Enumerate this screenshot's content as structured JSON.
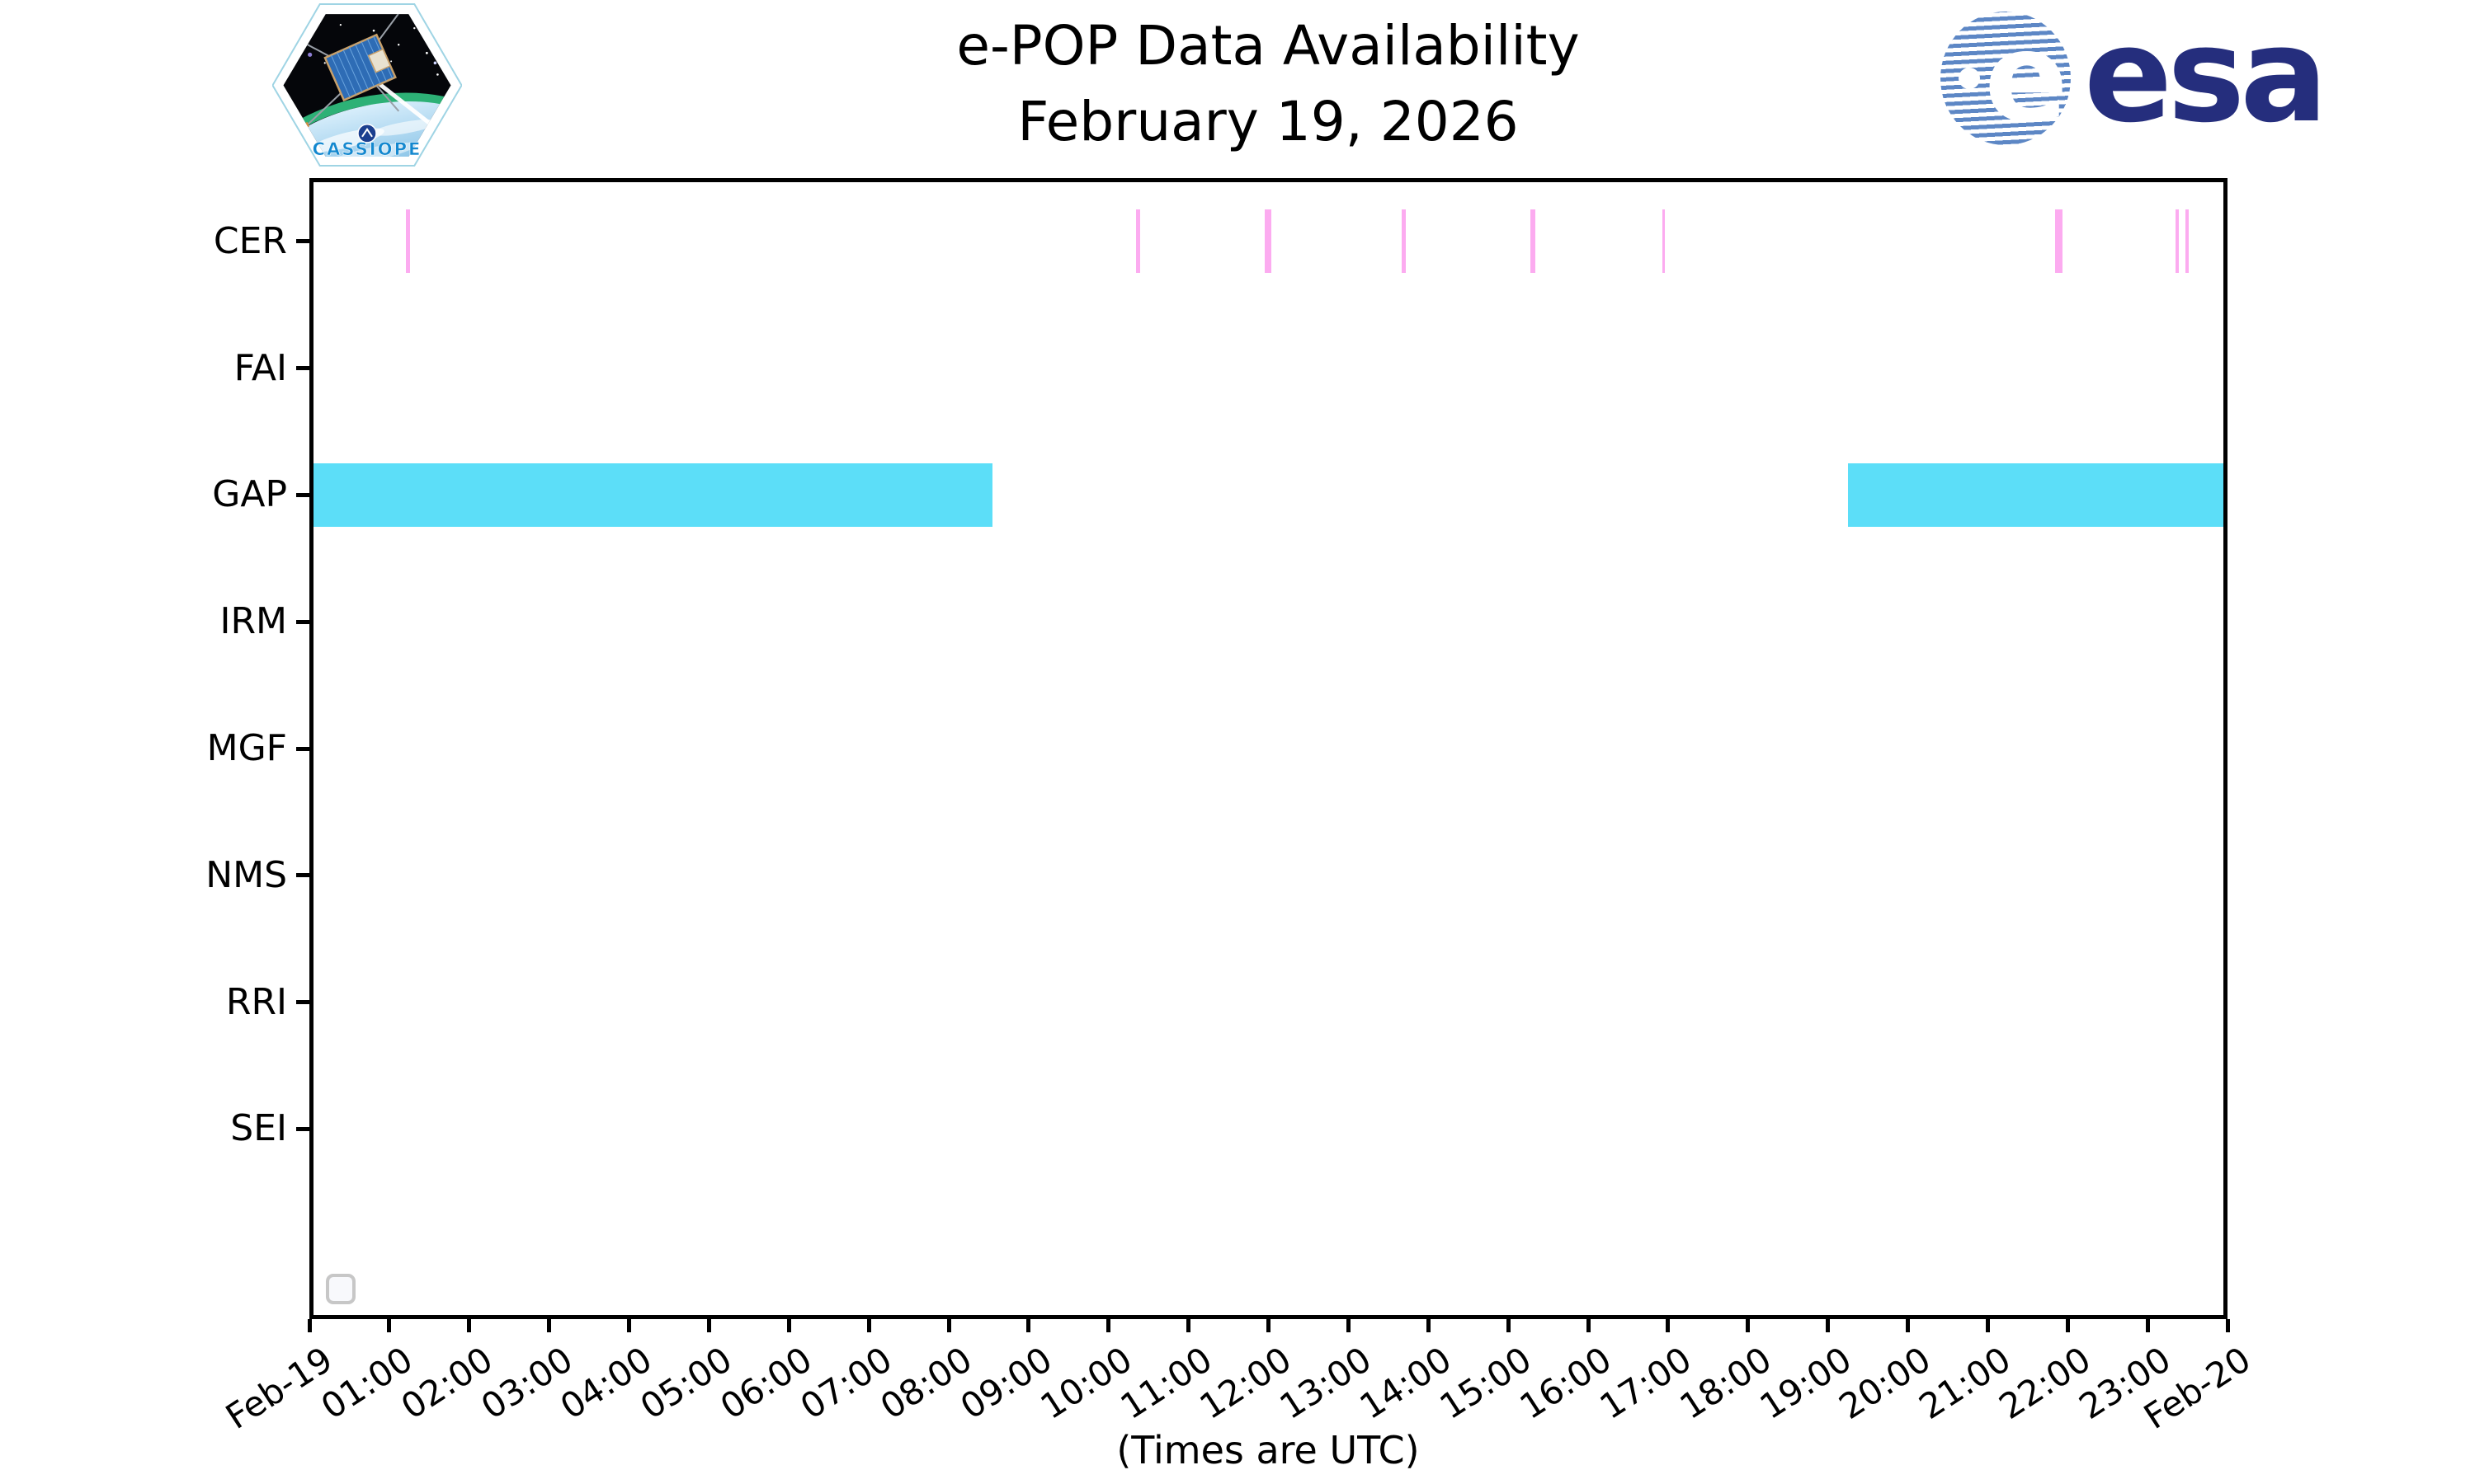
{
  "header": {
    "title_line1": "e-POP Data Availability",
    "title_line2": "February 19, 2026"
  },
  "branding": {
    "cassiope_text": "CASSIOPE",
    "esa_text": "esa",
    "esa_blue": "#252e7d",
    "cassiope_blue": "#1488cf"
  },
  "chart_data": {
    "type": "availability-timeline",
    "title": "e-POP Data Availability — February 19, 2026",
    "xlabel": "(Times are UTC)",
    "x_range_hours": [
      0,
      24
    ],
    "x_tick_labels": [
      "Feb-19",
      "01:00",
      "02:00",
      "03:00",
      "04:00",
      "05:00",
      "06:00",
      "07:00",
      "08:00",
      "09:00",
      "10:00",
      "11:00",
      "12:00",
      "13:00",
      "14:00",
      "15:00",
      "16:00",
      "17:00",
      "18:00",
      "19:00",
      "20:00",
      "21:00",
      "22:00",
      "23:00",
      "Feb-20"
    ],
    "instruments": [
      "CER",
      "FAI",
      "GAP",
      "IRM",
      "MGF",
      "NMS",
      "RRI",
      "SEI"
    ],
    "grid": false,
    "legend": "empty-box-bottom-left",
    "series": [
      {
        "name": "CER",
        "color": "#fcabf0",
        "intervals": [
          {
            "start_hours": 1.21,
            "end_hours": 1.26
          },
          {
            "start_hours": 10.34,
            "end_hours": 10.39
          },
          {
            "start_hours": 11.95,
            "end_hours": 12.04
          },
          {
            "start_hours": 13.67,
            "end_hours": 13.72
          },
          {
            "start_hours": 15.28,
            "end_hours": 15.34
          },
          {
            "start_hours": 16.93,
            "end_hours": 16.96
          },
          {
            "start_hours": 21.84,
            "end_hours": 21.94
          },
          {
            "start_hours": 23.35,
            "end_hours": 23.39
          },
          {
            "start_hours": 23.47,
            "end_hours": 23.51
          }
        ]
      },
      {
        "name": "GAP",
        "color": "#5cdef8",
        "intervals": [
          {
            "start_hours": 0.0,
            "end_hours": 8.55
          },
          {
            "start_hours": 19.25,
            "end_hours": 24.0
          }
        ]
      }
    ]
  }
}
